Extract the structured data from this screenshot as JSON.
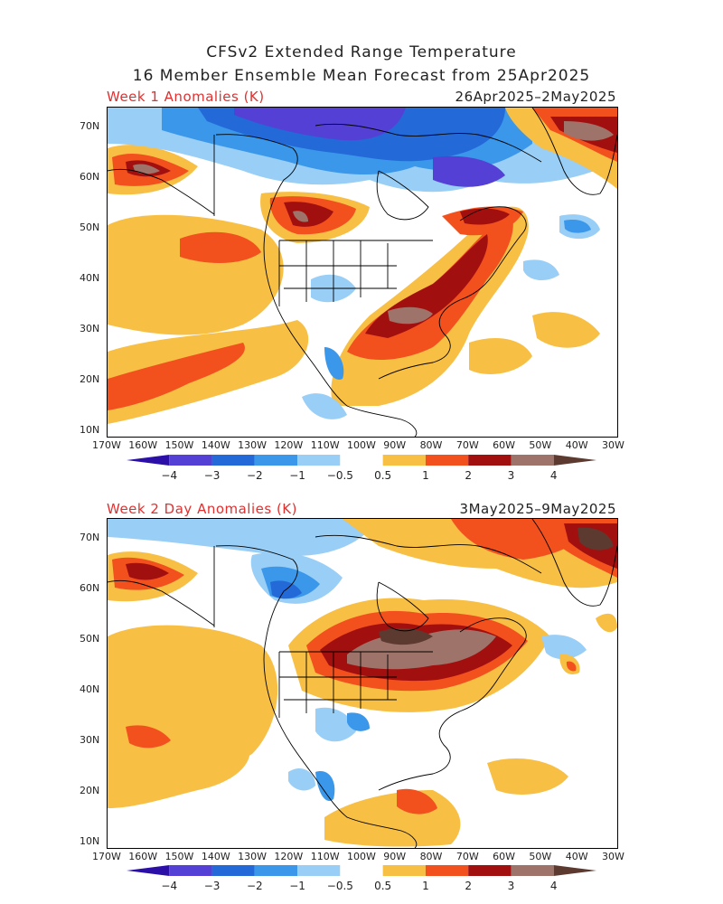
{
  "header": {
    "title_line1": "CFSv2 Extended Range Temperature",
    "title_line2": "16 Member Ensemble Mean Forecast from 25Apr2025"
  },
  "panels": [
    {
      "label": "Week 1 Anomalies (K)",
      "date_range": "26Apr2025–2May2025",
      "top_anomaly": "warm over eastern US and Quebec, cold over northern Canada"
    },
    {
      "label": "Week 2 Day Anomalies (K)",
      "date_range": "3May2025–9May2025",
      "top_anomaly": "strong warm over central Canada and Great Lakes"
    }
  ],
  "axes": {
    "lat_labels": [
      "70N",
      "60N",
      "50N",
      "40N",
      "30N",
      "20N",
      "10N"
    ],
    "lon_labels": [
      "170W",
      "160W",
      "150W",
      "140W",
      "130W",
      "120W",
      "110W",
      "100W",
      "90W",
      "80W",
      "70W",
      "60W",
      "50W",
      "40W",
      "30W"
    ]
  },
  "colorbar": {
    "ticks": [
      "−4",
      "−3",
      "−2",
      "−1",
      "−0.5",
      "0.5",
      "1",
      "2",
      "3",
      "4"
    ],
    "colors": [
      "#2b0fa6",
      "#5540d6",
      "#2369d8",
      "#3a97ea",
      "#99cef6",
      "#ffffff",
      "#f8bf45",
      "#f2511e",
      "#a20f0f",
      "#9e7369",
      "#5c3a30"
    ]
  }
}
